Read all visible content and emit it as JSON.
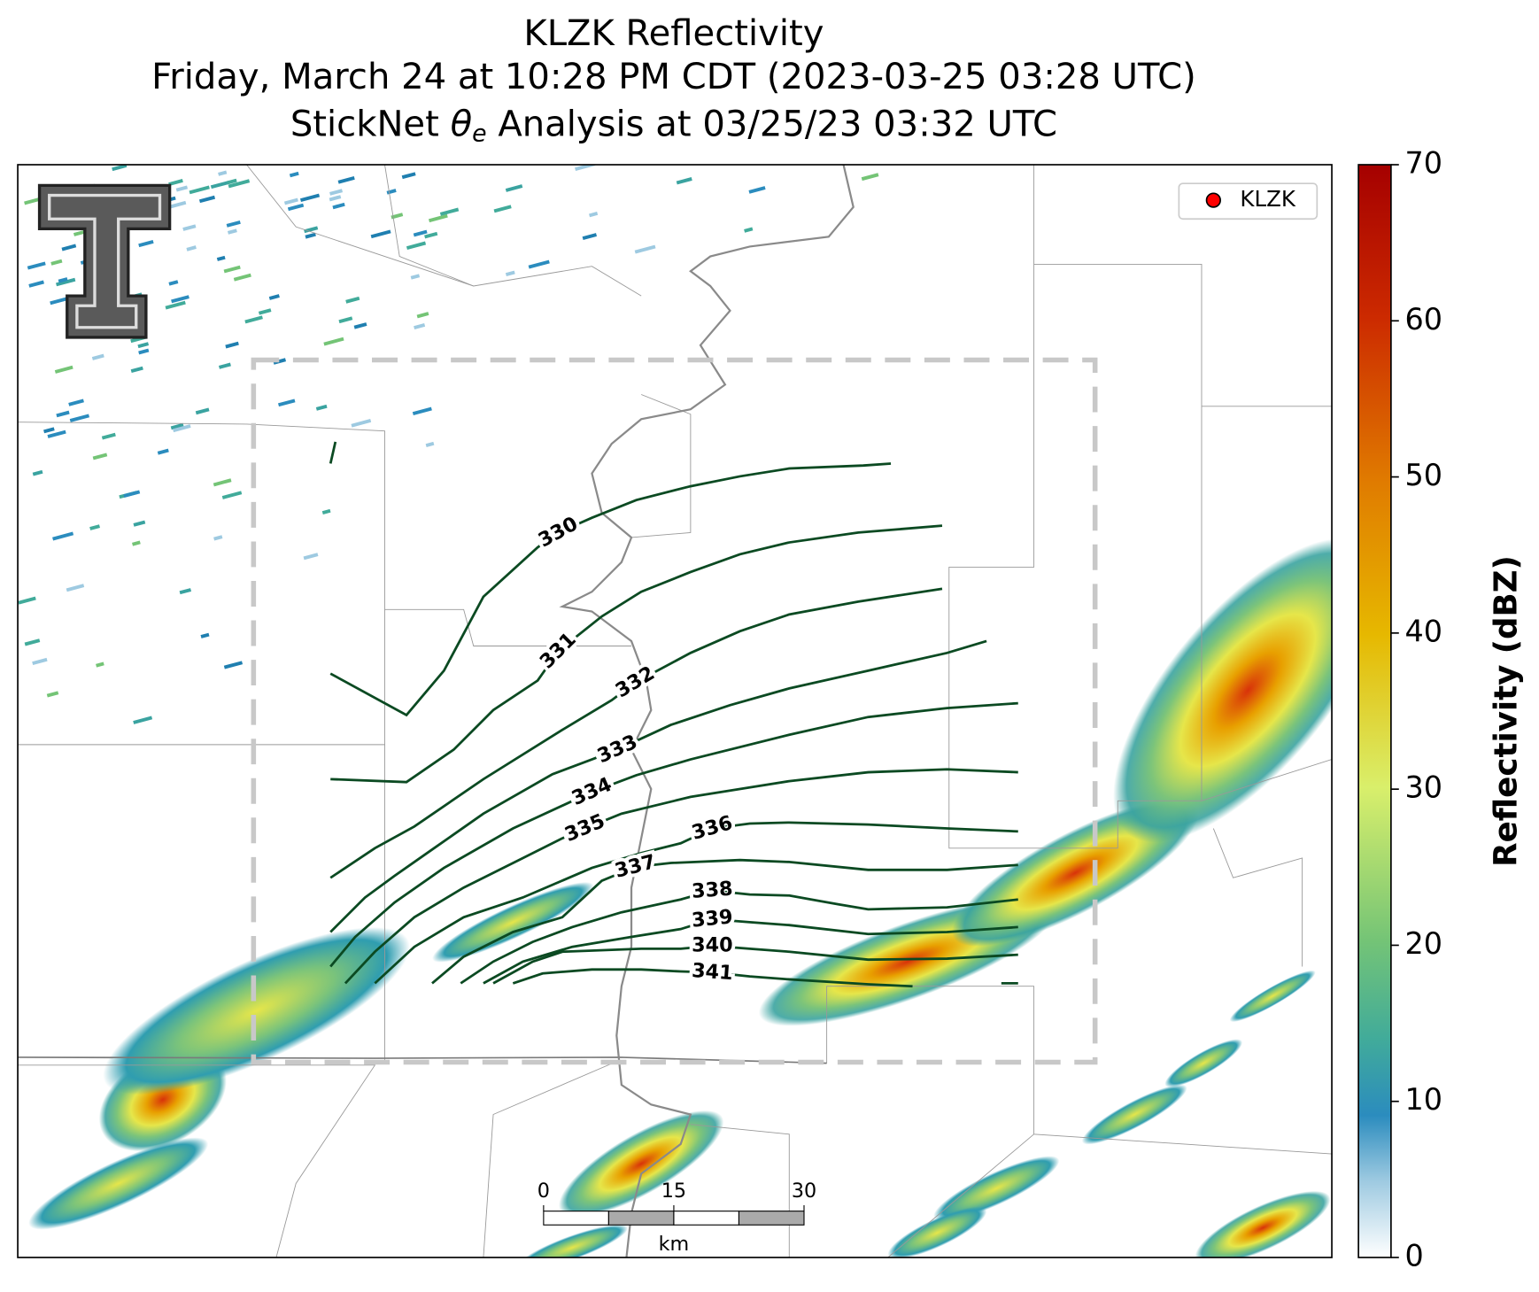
{
  "map": {
    "title": [
      "KLZK Reflectivity",
      "Friday, March 24 at 10:28 PM CDT (2023-03-25 03:28 UTC)"
    ],
    "title_analysis": {
      "before": "StickNet ",
      "symbol": "θ",
      "subscript": "e",
      "after": " Analysis at 03/25/23 03:32 UTC"
    },
    "legend": {
      "label": "KLZK",
      "color": "#ff0000"
    },
    "contour_labels": [
      330,
      331,
      332,
      333,
      334,
      335,
      336,
      337,
      338,
      339,
      340,
      341
    ],
    "contour_color": "#0b4a22",
    "scale_bar": {
      "ticks": [
        0,
        15,
        30
      ],
      "unit": "km"
    },
    "colorbar": {
      "label": "Reflectivity (dBZ)",
      "ylim": [
        0,
        70
      ],
      "yticks": [
        0,
        10,
        20,
        30,
        40,
        50,
        60,
        70
      ]
    }
  }
}
